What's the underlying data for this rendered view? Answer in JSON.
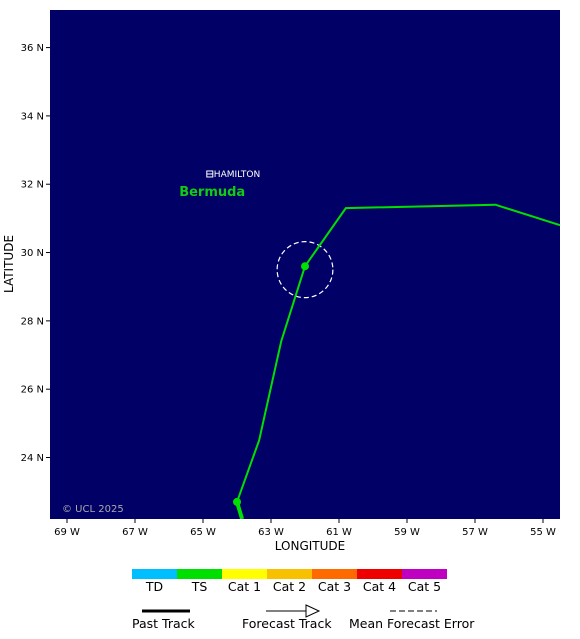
{
  "map": {
    "background_color": "#000066",
    "lon_range": [
      -69.5,
      -54.5
    ],
    "lat_range": [
      22.2,
      37.1
    ],
    "lon_ticks": [
      {
        "value": -69,
        "label": "69 W"
      },
      {
        "value": -67,
        "label": "67 W"
      },
      {
        "value": -65,
        "label": "65 W"
      },
      {
        "value": -63,
        "label": "63 W"
      },
      {
        "value": -61,
        "label": "61 W"
      },
      {
        "value": -59,
        "label": "59 W"
      },
      {
        "value": -57,
        "label": "57 W"
      },
      {
        "value": -55,
        "label": "55 W"
      }
    ],
    "lat_ticks": [
      {
        "value": 24,
        "label": "24 N"
      },
      {
        "value": 26,
        "label": "26 N"
      },
      {
        "value": 28,
        "label": "28 N"
      },
      {
        "value": 30,
        "label": "30 N"
      },
      {
        "value": 32,
        "label": "32 N"
      },
      {
        "value": 34,
        "label": "34 N"
      },
      {
        "value": 36,
        "label": "36 N"
      }
    ],
    "xlabel": "LONGITUDE",
    "ylabel": "LATITUDE",
    "copyright": "© UCL 2025",
    "places": [
      {
        "name": "HAMILTON",
        "lon": -64.8,
        "lat": 32.3,
        "color": "#ffffff"
      },
      {
        "name": "Bermuda",
        "lon": -65.7,
        "lat": 31.8,
        "color": "#11cc11"
      }
    ],
    "past_track": {
      "color": "#00e000",
      "points": [
        {
          "lon": -63.85,
          "lat": 22.2
        },
        {
          "lon": -64.0,
          "lat": 22.7
        }
      ]
    },
    "forecast_track": {
      "color": "#00e000",
      "points": [
        {
          "lon": -64.0,
          "lat": 22.7
        },
        {
          "lon": -63.35,
          "lat": 24.5
        },
        {
          "lon": -62.7,
          "lat": 27.4
        },
        {
          "lon": -62.0,
          "lat": 29.6
        },
        {
          "lon": -60.8,
          "lat": 31.3
        },
        {
          "lon": -56.4,
          "lat": 31.4
        },
        {
          "lon": -54.5,
          "lat": 30.8
        }
      ],
      "markers": [
        {
          "lon": -64.0,
          "lat": 22.7
        },
        {
          "lon": -62.0,
          "lat": 29.6
        }
      ]
    },
    "error_circle": {
      "lon": -62.0,
      "lat": 29.5,
      "radius_deg": 0.82,
      "color": "#ffffff"
    }
  },
  "legend": {
    "categories": [
      {
        "label": "TD",
        "color": "#00bfff"
      },
      {
        "label": "TS",
        "color": "#00e000"
      },
      {
        "label": "Cat 1",
        "color": "#ffff00"
      },
      {
        "label": "Cat 2",
        "color": "#f7c000"
      },
      {
        "label": "Cat 3",
        "color": "#ff6a00"
      },
      {
        "label": "Cat 4",
        "color": "#ee0000"
      },
      {
        "label": "Cat 5",
        "color": "#c000c0"
      }
    ],
    "past_track_label": "Past Track",
    "forecast_track_label": "Forecast Track",
    "error_label": "Mean Forecast Error"
  }
}
